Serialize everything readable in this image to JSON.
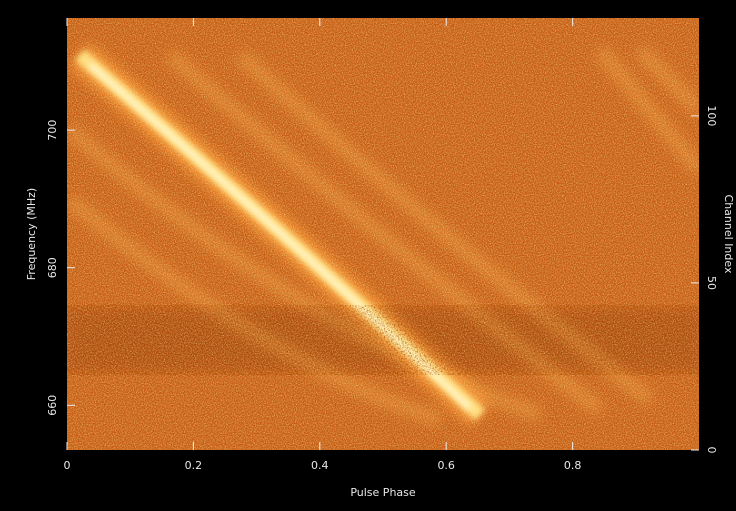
{
  "chart_data": {
    "type": "image",
    "xlabel": "Pulse Phase",
    "ylabel": "Frequency (MHz)",
    "y2label": "Channel Index",
    "xlim": [
      0,
      1
    ],
    "xticks": [
      0,
      0.2,
      0.4,
      0.6,
      0.8
    ],
    "ylim": [
      653.5,
      716.3
    ],
    "yticks": [
      660,
      680,
      700
    ],
    "y2lim": [
      0,
      129.3
    ],
    "y2ticks": [
      0,
      50,
      100
    ]
  }
}
